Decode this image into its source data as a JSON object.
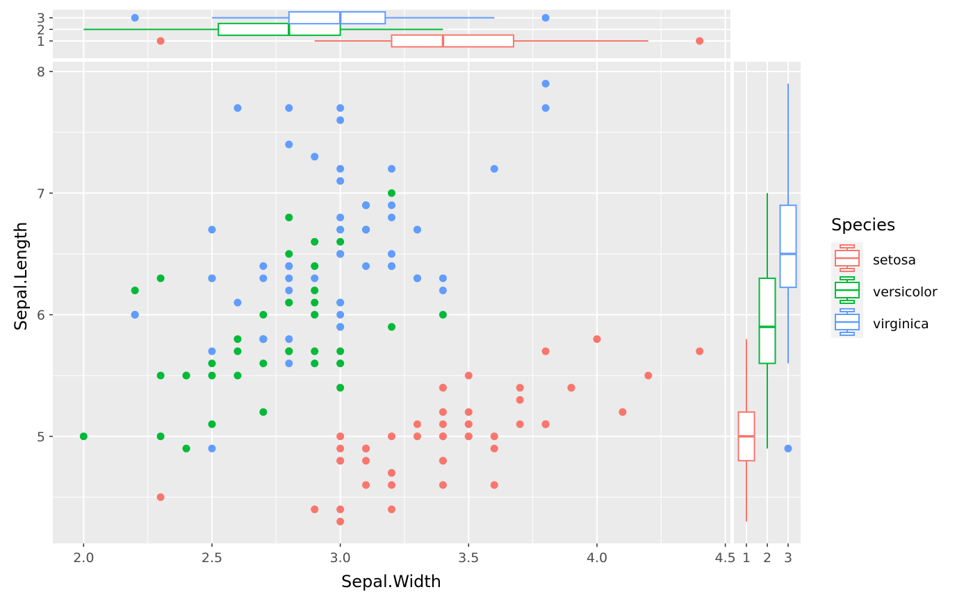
{
  "chart_data": {
    "type": "scatter",
    "title": "",
    "xlabel": "Sepal.Width",
    "ylabel": "Sepal.Length",
    "xlim": [
      1.88,
      4.52
    ],
    "ylim": [
      4.12,
      8.08
    ],
    "grid": true,
    "x_ticks": [
      "2.0",
      "2.5",
      "3.0",
      "3.5",
      "4.0",
      "4.5"
    ],
    "y_ticks": [
      "5",
      "6",
      "7",
      "8"
    ],
    "legend": {
      "title": "Species",
      "placement": "right",
      "entries": [
        "setosa",
        "versicolor",
        "virginica"
      ]
    },
    "colors": {
      "setosa": "#F8766D",
      "versicolor": "#00BA38",
      "virginica": "#619CFF"
    },
    "series": [
      {
        "name": "setosa",
        "points": [
          [
            3.5,
            5.1
          ],
          [
            3.0,
            4.9
          ],
          [
            3.2,
            4.7
          ],
          [
            3.1,
            4.6
          ],
          [
            3.6,
            5.0
          ],
          [
            3.9,
            5.4
          ],
          [
            3.4,
            4.6
          ],
          [
            3.4,
            5.0
          ],
          [
            2.9,
            4.4
          ],
          [
            3.1,
            4.9
          ],
          [
            3.7,
            5.4
          ],
          [
            3.4,
            4.8
          ],
          [
            3.0,
            4.8
          ],
          [
            3.0,
            4.3
          ],
          [
            4.0,
            5.8
          ],
          [
            4.4,
            5.7
          ],
          [
            3.9,
            5.4
          ],
          [
            3.5,
            5.1
          ],
          [
            3.8,
            5.7
          ],
          [
            3.8,
            5.1
          ],
          [
            3.4,
            5.4
          ],
          [
            3.7,
            5.1
          ],
          [
            3.6,
            4.6
          ],
          [
            3.3,
            5.1
          ],
          [
            3.4,
            4.8
          ],
          [
            3.0,
            5.0
          ],
          [
            3.4,
            5.0
          ],
          [
            3.5,
            5.2
          ],
          [
            3.4,
            5.2
          ],
          [
            3.2,
            4.7
          ],
          [
            3.1,
            4.8
          ],
          [
            3.4,
            5.4
          ],
          [
            4.1,
            5.2
          ],
          [
            4.2,
            5.5
          ],
          [
            3.1,
            4.9
          ],
          [
            3.2,
            5.0
          ],
          [
            3.5,
            5.5
          ],
          [
            3.6,
            4.9
          ],
          [
            3.0,
            4.4
          ],
          [
            3.4,
            5.1
          ],
          [
            3.5,
            5.0
          ],
          [
            2.3,
            4.5
          ],
          [
            3.2,
            4.4
          ],
          [
            3.5,
            5.0
          ],
          [
            3.8,
            5.1
          ],
          [
            3.0,
            4.8
          ],
          [
            3.8,
            5.1
          ],
          [
            3.2,
            4.6
          ],
          [
            3.7,
            5.3
          ],
          [
            3.3,
            5.0
          ]
        ]
      },
      {
        "name": "versicolor",
        "points": [
          [
            3.2,
            7.0
          ],
          [
            3.2,
            6.4
          ],
          [
            3.1,
            6.9
          ],
          [
            2.3,
            5.5
          ],
          [
            2.8,
            6.5
          ],
          [
            2.8,
            5.7
          ],
          [
            3.3,
            6.3
          ],
          [
            2.4,
            4.9
          ],
          [
            2.9,
            6.6
          ],
          [
            2.7,
            5.2
          ],
          [
            2.0,
            5.0
          ],
          [
            3.0,
            5.9
          ],
          [
            2.2,
            6.0
          ],
          [
            2.9,
            6.1
          ],
          [
            2.9,
            5.6
          ],
          [
            3.1,
            6.7
          ],
          [
            3.0,
            5.6
          ],
          [
            2.7,
            5.8
          ],
          [
            2.2,
            6.2
          ],
          [
            2.5,
            5.6
          ],
          [
            3.2,
            5.9
          ],
          [
            2.8,
            6.1
          ],
          [
            2.5,
            6.3
          ],
          [
            2.8,
            6.1
          ],
          [
            2.9,
            6.4
          ],
          [
            3.0,
            6.6
          ],
          [
            2.8,
            6.8
          ],
          [
            3.0,
            6.7
          ],
          [
            2.9,
            6.0
          ],
          [
            2.6,
            5.7
          ],
          [
            2.4,
            5.5
          ],
          [
            2.4,
            5.5
          ],
          [
            2.7,
            5.8
          ],
          [
            2.7,
            6.0
          ],
          [
            3.0,
            5.4
          ],
          [
            3.4,
            6.0
          ],
          [
            3.1,
            6.7
          ],
          [
            2.3,
            6.3
          ],
          [
            3.0,
            5.6
          ],
          [
            2.5,
            5.5
          ],
          [
            2.6,
            5.5
          ],
          [
            3.0,
            6.1
          ],
          [
            2.6,
            5.8
          ],
          [
            2.3,
            5.0
          ],
          [
            2.7,
            5.6
          ],
          [
            3.0,
            5.7
          ],
          [
            2.9,
            5.7
          ],
          [
            2.9,
            6.2
          ],
          [
            2.5,
            5.1
          ],
          [
            2.8,
            5.7
          ]
        ]
      },
      {
        "name": "virginica",
        "points": [
          [
            3.3,
            6.3
          ],
          [
            2.7,
            5.8
          ],
          [
            3.0,
            7.1
          ],
          [
            2.9,
            6.3
          ],
          [
            3.0,
            6.5
          ],
          [
            3.0,
            7.6
          ],
          [
            2.5,
            4.9
          ],
          [
            2.9,
            7.3
          ],
          [
            2.5,
            6.7
          ],
          [
            3.6,
            7.2
          ],
          [
            3.2,
            6.5
          ],
          [
            2.7,
            6.4
          ],
          [
            3.0,
            6.8
          ],
          [
            2.5,
            5.7
          ],
          [
            2.8,
            5.8
          ],
          [
            3.2,
            6.4
          ],
          [
            3.0,
            6.5
          ],
          [
            3.8,
            7.7
          ],
          [
            2.6,
            7.7
          ],
          [
            2.2,
            6.0
          ],
          [
            3.2,
            6.9
          ],
          [
            2.8,
            5.6
          ],
          [
            2.8,
            7.7
          ],
          [
            2.7,
            6.3
          ],
          [
            3.3,
            6.7
          ],
          [
            3.2,
            7.2
          ],
          [
            2.8,
            6.2
          ],
          [
            3.0,
            6.1
          ],
          [
            2.8,
            6.4
          ],
          [
            3.0,
            7.2
          ],
          [
            2.8,
            7.4
          ],
          [
            3.8,
            7.9
          ],
          [
            2.8,
            6.4
          ],
          [
            2.8,
            6.3
          ],
          [
            2.6,
            6.1
          ],
          [
            3.0,
            7.7
          ],
          [
            3.4,
            6.3
          ],
          [
            3.1,
            6.4
          ],
          [
            3.0,
            6.0
          ],
          [
            3.1,
            6.9
          ],
          [
            3.1,
            6.7
          ],
          [
            3.1,
            6.9
          ],
          [
            2.7,
            5.8
          ],
          [
            3.2,
            6.8
          ],
          [
            3.3,
            6.7
          ],
          [
            3.0,
            6.7
          ],
          [
            2.5,
            6.3
          ],
          [
            3.0,
            6.5
          ],
          [
            3.4,
            6.2
          ],
          [
            3.0,
            5.9
          ]
        ]
      }
    ],
    "marginal_top": {
      "type": "boxplot",
      "axis": "Sepal.Width",
      "category_ticks": [
        "1",
        "2",
        "3"
      ],
      "boxes": [
        {
          "name": "setosa",
          "whisker_low": 2.9,
          "q1": 3.2,
          "median": 3.4,
          "q3": 3.675,
          "whisker_high": 4.2,
          "outliers": [
            2.3,
            4.4
          ]
        },
        {
          "name": "versicolor",
          "whisker_low": 2.0,
          "q1": 2.525,
          "median": 2.8,
          "q3": 3.0,
          "whisker_high": 3.4,
          "outliers": []
        },
        {
          "name": "virginica",
          "whisker_low": 2.5,
          "q1": 2.8,
          "median": 3.0,
          "q3": 3.175,
          "whisker_high": 3.6,
          "outliers": [
            2.2,
            3.8
          ]
        }
      ]
    },
    "marginal_right": {
      "type": "boxplot",
      "axis": "Sepal.Length",
      "category_ticks": [
        "1",
        "2",
        "3"
      ],
      "boxes": [
        {
          "name": "setosa",
          "whisker_low": 4.3,
          "q1": 4.8,
          "median": 5.0,
          "q3": 5.2,
          "whisker_high": 5.8,
          "outliers": []
        },
        {
          "name": "versicolor",
          "whisker_low": 4.9,
          "q1": 5.6,
          "median": 5.9,
          "q3": 6.3,
          "whisker_high": 7.0,
          "outliers": []
        },
        {
          "name": "virginica",
          "whisker_low": 5.6,
          "q1": 6.225,
          "median": 6.5,
          "q3": 6.9,
          "whisker_high": 7.9,
          "outliers": [
            4.9
          ]
        }
      ]
    }
  }
}
